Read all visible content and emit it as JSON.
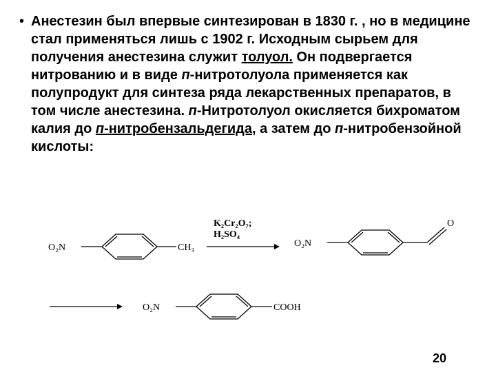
{
  "text": {
    "paragraph_html": "Анестезин был впервые синтезирован в 1830 г. , но в медицине стал применяться лишь с 1902 г. Исходным сырьем для получения анестезина служит <span class=\"underline\">толуол.</span> Он подвергается нитрованию и в виде <span class=\"italic\">п</span>-нитротолуола применяется как полупродукт для синтеза ряда лекарственных препаратов, в том числе анестезина. <span class=\"italic\">п</span>-Нитротолуол окисляется бихроматом калия до <span class=\"underline\"><span class=\"italic\">п</span>-нитробензальдегида</span>, а затем до <span class=\"italic\">п</span>-нитробензойной кислоты:"
  },
  "reagents": {
    "line1": "K₂Cr₂O₇;",
    "line2": "H₂SO₄"
  },
  "labels": {
    "o2n": "O₂N",
    "ch3": "CH₃",
    "cooh": "COOH",
    "o": "O"
  },
  "page_number": "20",
  "style": {
    "bg": "#ffffff",
    "text_color": "#000000",
    "font_size_pt": 20,
    "line_height": 26,
    "stroke": "#000000",
    "stroke_width": 1.3
  }
}
